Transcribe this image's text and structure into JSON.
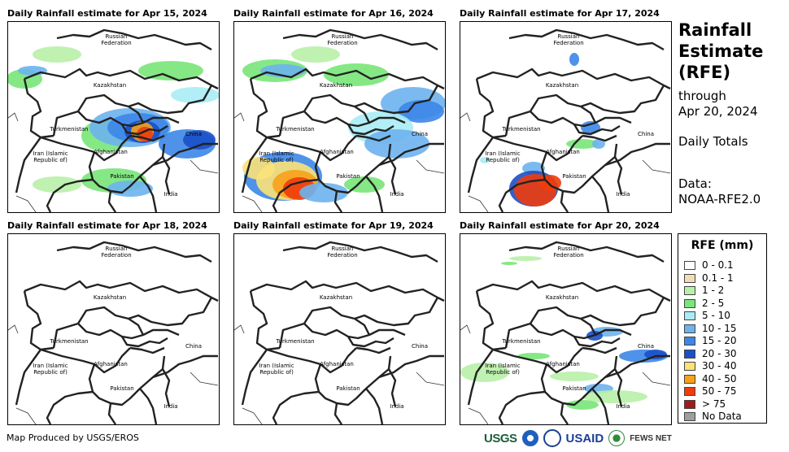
{
  "panels": [
    {
      "title": "Daily Rainfall estimate for Apr 15, 2024",
      "rain": "heavy"
    },
    {
      "title": "Daily Rainfall estimate for Apr 16, 2024",
      "rain": "west"
    },
    {
      "title": "Daily Rainfall estimate for Apr 17, 2024",
      "rain": "south"
    },
    {
      "title": "Daily Rainfall estimate for Apr 18, 2024",
      "rain": "none"
    },
    {
      "title": "Daily Rainfall estimate for Apr 19, 2024",
      "rain": "none"
    },
    {
      "title": "Daily Rainfall estimate for Apr 20, 2024",
      "rain": "light"
    }
  ],
  "map_labels": {
    "russia_line1": "Russian",
    "russia_line2": "Federation",
    "kazakhstan": "Kazakhstan",
    "turkmenistan": "Turkmenistan",
    "china": "China",
    "iran_line1": "Iran  (Islamic",
    "iran_line2": "Republic of)",
    "afghanistan": "Afghanistan",
    "pakistan": "Pakistan",
    "india": "India"
  },
  "side": {
    "title_line1": "Rainfall",
    "title_line2": "Estimate",
    "title_line3": "(RFE)",
    "through": "through",
    "date": "Apr 20, 2024",
    "totals": "Daily Totals",
    "data_label": "Data:",
    "data_source": "NOAA-RFE2.0"
  },
  "legend": {
    "title": "RFE (mm)",
    "items": [
      {
        "label": "0 - 0.1",
        "color": "#ffffff"
      },
      {
        "label": "0.1 - 1",
        "color": "#f2dcb5"
      },
      {
        "label": "1 - 2",
        "color": "#b8f0a8"
      },
      {
        "label": "2 - 5",
        "color": "#78e678"
      },
      {
        "label": "5 - 10",
        "color": "#a9ecf5"
      },
      {
        "label": "10 - 15",
        "color": "#6db3ee"
      },
      {
        "label": "15 - 20",
        "color": "#3c86e8"
      },
      {
        "label": "20 - 30",
        "color": "#1a50c8"
      },
      {
        "label": "30 - 40",
        "color": "#fbe278"
      },
      {
        "label": "40 - 50",
        "color": "#f7a11a"
      },
      {
        "label": "50 - 75",
        "color": "#f03c0c"
      },
      {
        "label": "> 75",
        "color": "#a01c18"
      },
      {
        "label": "No Data",
        "color": "#9e9e9e"
      }
    ]
  },
  "footer": {
    "credit": "Map Produced by USGS/EROS"
  },
  "logos": {
    "usgs": "USGS",
    "usaid": "USAID",
    "fews": "FEWS NET"
  }
}
